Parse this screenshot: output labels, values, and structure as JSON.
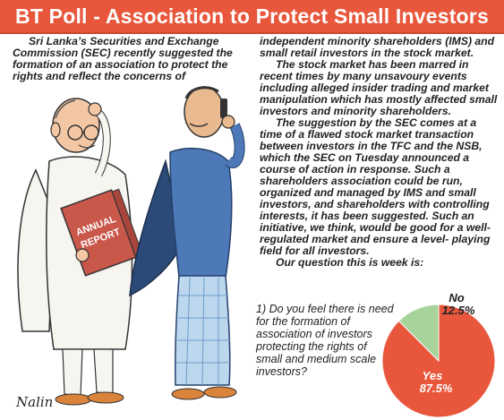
{
  "header": {
    "title": "BT Poll - Association to Protect Small Investors"
  },
  "article": {
    "intro": "Sri Lanka’s Securities and Exchange Commission (SEC) recently suggested the formation of an association to protect the rights and reflect the concerns of",
    "p1": "independent minority shareholders (IMS) and small retail investors in the stock market.",
    "p2": "The stock market has been marred in recent times by many unsavoury events including alleged insider trading and market manipulation which has mostly affected small investors and minority shareholders.",
    "p3": "The suggestion by the SEC comes at a time of a flawed stock market transaction between investors in the TFC and the NSB, which the SEC on Tuesday announced a course of action in response. Such a shareholders association could be run, organized and managed by IMS and small investors, and shareholders with controlling interests, it has been suggested. Such an initiative, we think, would be good for a well-regulated market and ensure a level- playing field for all investors.",
    "p4": "Our question this is week is:"
  },
  "poll": {
    "question": "1) Do you feel there is need for the formation of association of investors protecting the rights of small and medium scale investors?"
  },
  "cartoon": {
    "book_line1": "ANNUAL",
    "book_line2": "REPORT",
    "signature": "Nalin"
  },
  "chart_data": {
    "type": "pie",
    "slices": [
      {
        "label": "Yes",
        "value": 87.5,
        "value_label": "87.5%",
        "color": "#e8573c"
      },
      {
        "label": "No",
        "value": 12.5,
        "value_label": "12.5%",
        "color": "#a6d39a"
      }
    ]
  },
  "colors": {
    "accent": "#e8573c",
    "header_text": "#ffffff",
    "no_slice": "#a6d39a"
  }
}
